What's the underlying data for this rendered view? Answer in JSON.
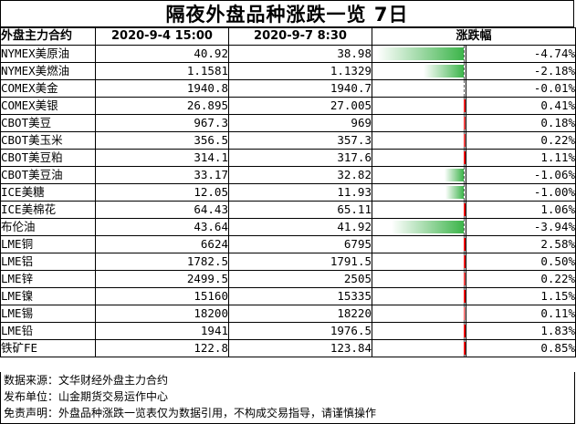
{
  "title": "隔夜外盘品种涨跌一览 7日",
  "headers": {
    "name": "外盘主力合约",
    "date1": "2020-9-4 15:00",
    "date2": "2020-9-7 8:30",
    "change": "涨跌幅"
  },
  "chart_data": {
    "type": "table",
    "title": "隔夜外盘品种涨跌一览 7日",
    "columns": [
      "外盘主力合约",
      "2020-9-4 15:00",
      "2020-9-7 8:30",
      "涨跌幅"
    ],
    "bar_range": [
      -5,
      5
    ],
    "rows": [
      {
        "name": "NYMEX美原油",
        "v1": "40.92",
        "v2": "38.98",
        "pct": -4.74,
        "pct_label": "-4.74%"
      },
      {
        "name": "NYMEX美燃油",
        "v1": "1.1581",
        "v2": "1.1329",
        "pct": -2.18,
        "pct_label": "-2.18%"
      },
      {
        "name": "COMEX美金",
        "v1": "1940.8",
        "v2": "1940.7",
        "pct": -0.01,
        "pct_label": "-0.01%"
      },
      {
        "name": "COMEX美银",
        "v1": "26.895",
        "v2": "27.005",
        "pct": 0.41,
        "pct_label": "0.41%"
      },
      {
        "name": "CBOT美豆",
        "v1": "967.3",
        "v2": "969",
        "pct": 0.18,
        "pct_label": "0.18%"
      },
      {
        "name": "CBOT美玉米",
        "v1": "356.5",
        "v2": "357.3",
        "pct": 0.22,
        "pct_label": "0.22%"
      },
      {
        "name": "CBOT美豆粕",
        "v1": "314.1",
        "v2": "317.6",
        "pct": 1.11,
        "pct_label": "1.11%"
      },
      {
        "name": "CBOT美豆油",
        "v1": "33.17",
        "v2": "32.82",
        "pct": -1.06,
        "pct_label": "-1.06%"
      },
      {
        "name": "ICE美糖",
        "v1": "12.05",
        "v2": "11.93",
        "pct": -1.0,
        "pct_label": "-1.00%"
      },
      {
        "name": "ICE美棉花",
        "v1": "64.43",
        "v2": "65.11",
        "pct": 1.06,
        "pct_label": "1.06%"
      },
      {
        "name": "布伦油",
        "v1": "43.64",
        "v2": "41.92",
        "pct": -3.94,
        "pct_label": "-3.94%"
      },
      {
        "name": "LME铜",
        "v1": "6624",
        "v2": "6795",
        "pct": 2.58,
        "pct_label": "2.58%"
      },
      {
        "name": "LME铝",
        "v1": "1782.5",
        "v2": "1791.5",
        "pct": 0.5,
        "pct_label": "0.50%"
      },
      {
        "name": "LME锌",
        "v1": "2499.5",
        "v2": "2505",
        "pct": 0.22,
        "pct_label": "0.22%"
      },
      {
        "name": "LME镍",
        "v1": "15160",
        "v2": "15335",
        "pct": 1.15,
        "pct_label": "1.15%"
      },
      {
        "name": "LME锡",
        "v1": "18200",
        "v2": "18220",
        "pct": 0.11,
        "pct_label": "0.11%"
      },
      {
        "name": "LME铅",
        "v1": "1941",
        "v2": "1976.5",
        "pct": 1.83,
        "pct_label": "1.83%"
      },
      {
        "name": "铁矿FE",
        "v1": "122.8",
        "v2": "123.84",
        "pct": 0.85,
        "pct_label": "0.85%"
      }
    ]
  },
  "footer": {
    "source": "数据来源：文华财经外盘主力合约",
    "publisher": "发布单位：山金期货交易运作中心",
    "disclaimer": "免责声明：外盘品种涨跌一览表仅为数据引用，不构成交易指导，请谨慎操作"
  },
  "colors": {
    "up": "#f20000",
    "down": "#3cb54a"
  }
}
